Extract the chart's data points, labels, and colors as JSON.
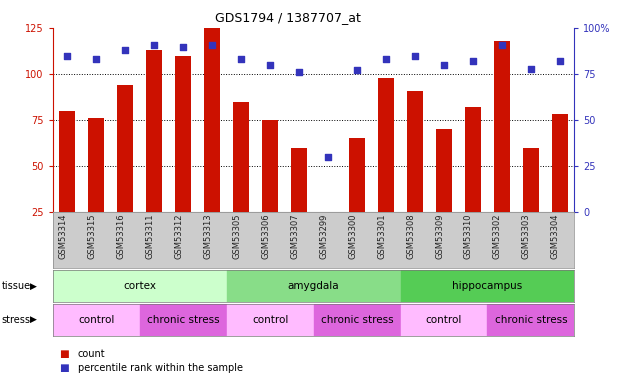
{
  "title": "GDS1794 / 1387707_at",
  "samples": [
    "GSM53314",
    "GSM53315",
    "GSM53316",
    "GSM53311",
    "GSM53312",
    "GSM53313",
    "GSM53305",
    "GSM53306",
    "GSM53307",
    "GSM53299",
    "GSM53300",
    "GSM53301",
    "GSM53308",
    "GSM53309",
    "GSM53310",
    "GSM53302",
    "GSM53303",
    "GSM53304"
  ],
  "counts": [
    80,
    76,
    94,
    113,
    110,
    125,
    85,
    75,
    60,
    22,
    65,
    98,
    91,
    70,
    82,
    118,
    60,
    78
  ],
  "percentiles": [
    85,
    83,
    88,
    91,
    90,
    91,
    83,
    80,
    76,
    30,
    77,
    83,
    85,
    80,
    82,
    91,
    78,
    82
  ],
  "bar_color": "#cc1100",
  "dot_color": "#3333bb",
  "ylim_left": [
    25,
    125
  ],
  "ylim_right": [
    0,
    100
  ],
  "yticks_left": [
    25,
    50,
    75,
    100,
    125
  ],
  "yticks_right": [
    0,
    25,
    50,
    75,
    100
  ],
  "ytick_labels_right": [
    "0",
    "25",
    "50",
    "75",
    "100%"
  ],
  "tissue_groups": [
    {
      "label": "cortex",
      "start": 0,
      "end": 6,
      "color": "#ccffcc"
    },
    {
      "label": "amygdala",
      "start": 6,
      "end": 12,
      "color": "#88dd88"
    },
    {
      "label": "hippocampus",
      "start": 12,
      "end": 18,
      "color": "#55cc55"
    }
  ],
  "stress_groups": [
    {
      "label": "control",
      "start": 0,
      "end": 3,
      "color": "#ffbbff"
    },
    {
      "label": "chronic stress",
      "start": 3,
      "end": 6,
      "color": "#dd66dd"
    },
    {
      "label": "control",
      "start": 6,
      "end": 9,
      "color": "#ffbbff"
    },
    {
      "label": "chronic stress",
      "start": 9,
      "end": 12,
      "color": "#dd66dd"
    },
    {
      "label": "control",
      "start": 12,
      "end": 15,
      "color": "#ffbbff"
    },
    {
      "label": "chronic stress",
      "start": 15,
      "end": 18,
      "color": "#dd66dd"
    }
  ],
  "bg_color": "#cccccc",
  "tick_label_color": "#222222",
  "left_axis_color": "#cc1100",
  "right_axis_color": "#3333bb",
  "grid_ticks": [
    50,
    75,
    100
  ],
  "bar_width": 0.55
}
